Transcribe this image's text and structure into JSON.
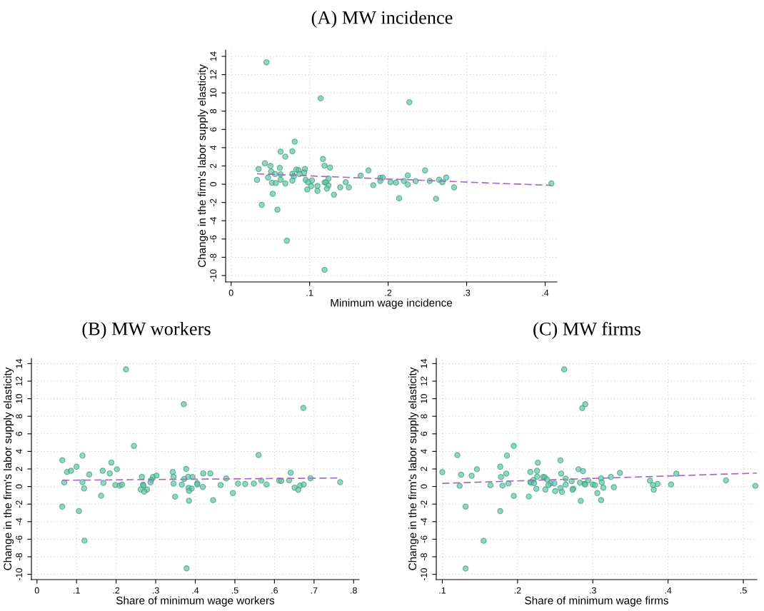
{
  "chart_data": [
    {
      "type": "scatter",
      "title": "(A) MW incidence",
      "xlabel": "Minimum wage incidence",
      "ylabel": "Change in the firm's labor supply elasticity",
      "xlim": [
        -0.007,
        0.415
      ],
      "ylim": [
        -10.7,
        14.7
      ],
      "xticks": [
        0,
        {
          "value": 0.1,
          "label": ".1"
        },
        {
          "value": 0.2,
          "label": ".2"
        },
        {
          "value": 0.3,
          "label": ".3"
        },
        {
          "value": 0.4,
          "label": ".4"
        }
      ],
      "yticks": [
        -10,
        -8,
        -6,
        -4,
        -2,
        0,
        2,
        4,
        6,
        8,
        10,
        12,
        14
      ],
      "grid": true,
      "series": [
        {
          "marker": "circle",
          "color": "#66c2a5",
          "x": [
            0.045,
            0.114,
            0.227,
            0.081,
            0.063,
            0.078,
            0.069,
            0.117,
            0.043,
            0.05,
            0.035,
            0.062,
            0.119,
            0.126,
            0.051,
            0.056,
            0.063,
            0.083,
            0.086,
            0.094,
            0.093,
            0.078,
            0.087,
            0.08,
            0.175,
            0.165,
            0.247,
            0.225,
            0.19,
            0.193,
            0.19,
            0.274,
            0.265,
            0.033,
            0.047,
            0.063,
            0.078,
            0.095,
            0.103,
            0.124,
            0.098,
            0.052,
            0.057,
            0.069,
            0.119,
            0.121,
            0.146,
            0.203,
            0.21,
            0.22,
            0.235,
            0.253,
            0.269,
            0.408,
            0.181,
            0.225,
            0.102,
            0.11,
            0.124,
            0.097,
            0.11,
            0.122,
            0.139,
            0.15,
            0.284,
            0.053,
            0.131,
            0.214,
            0.261,
            0.039,
            0.059,
            0.071,
            0.119
          ],
          "values": [
            13.36,
            9.41,
            8.97,
            4.65,
            3.56,
            3.61,
            3.02,
            2.76,
            2.29,
            2.0,
            1.66,
            1.79,
            2.03,
            1.82,
            1.4,
            1.12,
            1.09,
            1.61,
            1.53,
            1.66,
            1.27,
            1.14,
            1.12,
            0.86,
            1.51,
            0.94,
            1.51,
            0.96,
            0.7,
            0.73,
            0.36,
            0.73,
            0.49,
            0.47,
            0.73,
            0.49,
            0.39,
            0.47,
            0.42,
            0.62,
            0.23,
            0.16,
            0.13,
            0.08,
            0.21,
            0.21,
            0.23,
            0.23,
            0.18,
            0.36,
            0.34,
            0.36,
            0.23,
            0.08,
            -0.1,
            -0.03,
            -0.21,
            -0.18,
            -0.13,
            -0.57,
            -0.73,
            -0.49,
            -0.34,
            -0.34,
            -0.34,
            -1.04,
            -1.14,
            -1.53,
            -1.59,
            -2.26,
            -2.78,
            -6.18,
            -9.38
          ]
        },
        {
          "type": "line",
          "line_style": "dashed",
          "color": "#a66bbf",
          "x": [
            0.033,
            0.408
          ],
          "values": [
            1.14,
            -0.13
          ]
        }
      ]
    },
    {
      "type": "scatter",
      "title": "(B) MW workers",
      "xlabel": "Share of minimum wage workers",
      "ylabel": "Change in the firm's labor supply elasticity",
      "xlim": [
        -0.014,
        0.814
      ],
      "ylim": [
        -10.6,
        14.6
      ],
      "xticks": [
        0,
        {
          "value": 0.1,
          "label": ".1"
        },
        {
          "value": 0.2,
          "label": ".2"
        },
        {
          "value": 0.3,
          "label": ".3"
        },
        {
          "value": 0.4,
          "label": ".4"
        },
        {
          "value": 0.5,
          "label": ".5"
        },
        {
          "value": 0.6,
          "label": ".6"
        },
        {
          "value": 0.7,
          "label": ".7"
        },
        {
          "value": 0.8,
          "label": ".8"
        }
      ],
      "yticks": [
        -10,
        -8,
        -6,
        -4,
        -2,
        0,
        2,
        4,
        6,
        8,
        10,
        12,
        14
      ],
      "grid": true,
      "series": [
        {
          "marker": "circle",
          "color": "#66c2a5",
          "x": [
            0.225,
            0.371,
            0.673,
            0.245,
            0.56,
            0.115,
            0.064,
            0.188,
            0.1,
            0.202,
            0.377,
            0.076,
            0.086,
            0.166,
            0.184,
            0.132,
            0.343,
            0.42,
            0.438,
            0.641,
            0.265,
            0.293,
            0.302,
            0.345,
            0.382,
            0.393,
            0.372,
            0.478,
            0.691,
            0.289,
            0.567,
            0.612,
            0.617,
            0.637,
            0.069,
            0.115,
            0.168,
            0.287,
            0.345,
            0.405,
            0.508,
            0.526,
            0.548,
            0.766,
            0.198,
            0.209,
            0.215,
            0.268,
            0.269,
            0.366,
            0.405,
            0.464,
            0.58,
            0.665,
            0.674,
            0.119,
            0.262,
            0.278,
            0.271,
            0.383,
            0.391,
            0.384,
            0.419,
            0.651,
            0.66,
            0.495,
            0.162,
            0.349,
            0.384,
            0.445,
            0.064,
            0.106,
            0.12,
            0.378
          ],
          "values": [
            13.34,
            9.37,
            8.95,
            4.63,
            3.58,
            3.53,
            3.0,
            2.74,
            2.26,
            1.97,
            2.0,
            1.66,
            1.79,
            1.79,
            1.5,
            1.37,
            1.66,
            1.5,
            1.5,
            1.58,
            1.11,
            1.08,
            1.24,
            1.11,
            1.11,
            1.08,
            0.87,
            0.92,
            0.95,
            0.74,
            0.68,
            0.68,
            0.63,
            0.71,
            0.47,
            0.5,
            0.42,
            0.47,
            0.34,
            0.37,
            0.34,
            0.29,
            0.34,
            0.5,
            0.18,
            0.11,
            0.21,
            0.21,
            0.11,
            0.21,
            0.24,
            0.18,
            0.24,
            0.11,
            0.24,
            -0.21,
            -0.34,
            -0.34,
            -0.58,
            -0.16,
            -0.24,
            -0.5,
            -0.05,
            -0.13,
            -0.37,
            -0.74,
            -1.05,
            -1.16,
            -1.61,
            -1.55,
            -2.29,
            -2.79,
            -6.16,
            -9.32
          ]
        },
        {
          "type": "line",
          "line_style": "dashed",
          "color": "#a66bbf",
          "x": [
            0.064,
            0.761
          ],
          "values": [
            0.71,
            0.97
          ]
        }
      ]
    },
    {
      "type": "scatter",
      "title": "(C) MW firms",
      "xlabel": "Share of minimum wage firms",
      "ylabel": "Change in the firm's labor supply elasticity",
      "xlim": [
        0.092,
        0.518
      ],
      "ylim": [
        -10.6,
        14.6
      ],
      "xticks": [
        {
          "value": 0.1,
          "label": ".1"
        },
        {
          "value": 0.2,
          "label": ".2"
        },
        {
          "value": 0.3,
          "label": ".3"
        },
        {
          "value": 0.4,
          "label": ".4"
        },
        {
          "value": 0.5,
          "label": ".5"
        }
      ],
      "yticks": [
        -10,
        -8,
        -6,
        -4,
        -2,
        0,
        2,
        4,
        6,
        8,
        10,
        12,
        14
      ],
      "grid": true,
      "series": [
        {
          "marker": "circle",
          "color": "#66c2a5",
          "x": [
            0.262,
            0.29,
            0.286,
            0.195,
            0.12,
            0.186,
            0.257,
            0.227,
            0.177,
            0.146,
            0.281,
            0.1,
            0.217,
            0.226,
            0.287,
            0.336,
            0.411,
            0.125,
            0.185,
            0.258,
            0.139,
            0.178,
            0.226,
            0.234,
            0.236,
            0.324,
            0.239,
            0.264,
            0.311,
            0.221,
            0.294,
            0.376,
            0.477,
            0.272,
            0.217,
            0.218,
            0.222,
            0.188,
            0.244,
            0.249,
            0.283,
            0.312,
            0.289,
            0.29,
            0.386,
            0.123,
            0.164,
            0.18,
            0.241,
            0.264,
            0.3,
            0.303,
            0.38,
            0.404,
            0.516,
            0.257,
            0.225,
            0.237,
            0.274,
            0.273,
            0.25,
            0.259,
            0.314,
            0.328,
            0.381,
            0.306,
            0.195,
            0.215,
            0.284,
            0.311,
            0.131,
            0.177,
            0.155,
            0.131
          ],
          "values": [
            13.34,
            9.37,
            8.93,
            4.62,
            3.58,
            3.53,
            2.98,
            2.72,
            2.26,
            1.97,
            1.97,
            1.63,
            1.66,
            1.79,
            1.76,
            1.56,
            1.48,
            1.35,
            1.48,
            1.48,
            1.22,
            1.09,
            1.12,
            1.09,
            1.06,
            1.09,
            0.8,
            0.91,
            0.93,
            0.75,
            0.7,
            0.67,
            0.7,
            0.62,
            0.49,
            0.44,
            0.39,
            0.36,
            0.36,
            0.36,
            0.44,
            0.47,
            0.31,
            0.23,
            0.29,
            0.08,
            0.16,
            0.1,
            0.18,
            0.21,
            0.23,
            0.16,
            0.18,
            0.23,
            0.08,
            -0.18,
            -0.26,
            -0.34,
            -0.26,
            -0.36,
            -0.52,
            -0.6,
            -0.13,
            -0.08,
            -0.36,
            -0.75,
            -1.06,
            -1.14,
            -1.63,
            -1.56,
            -2.28,
            -2.8,
            -6.18,
            -9.34
          ]
        },
        {
          "type": "line",
          "line_style": "dashed",
          "color": "#a66bbf",
          "x": [
            0.1,
            0.518
          ],
          "values": [
            0.36,
            1.53
          ]
        }
      ]
    }
  ]
}
